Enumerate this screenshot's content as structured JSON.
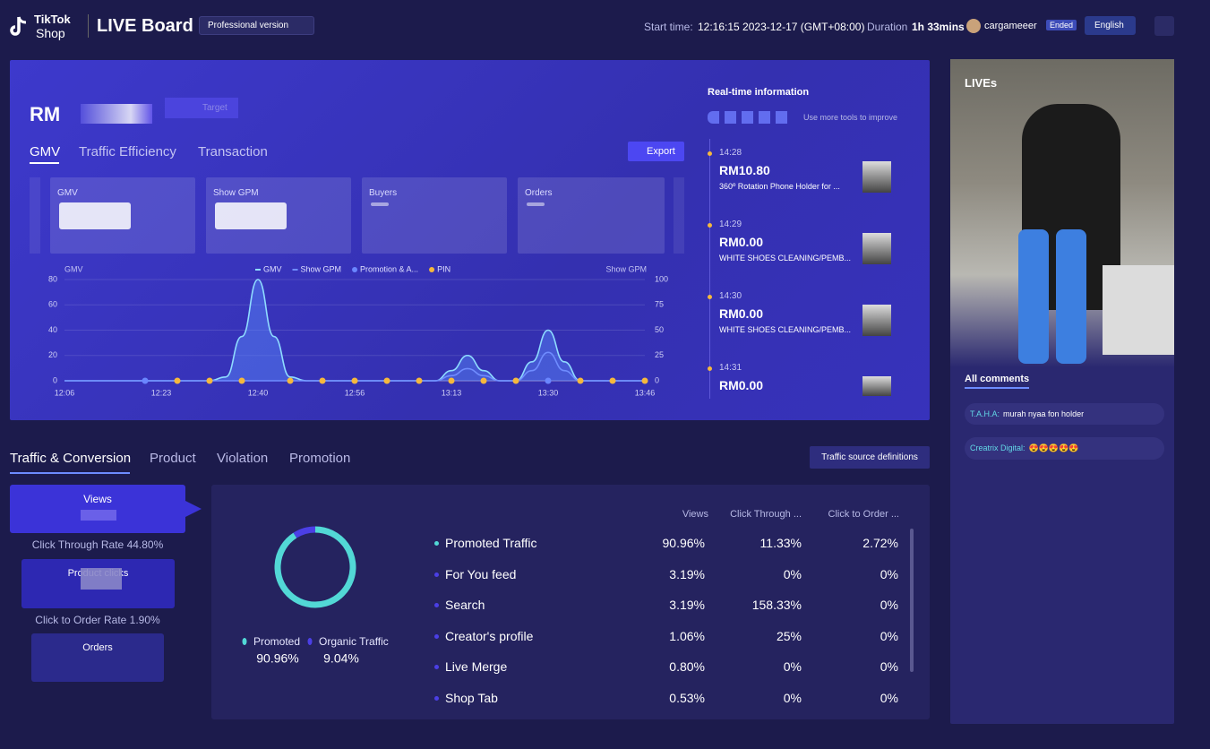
{
  "header": {
    "brand": "TikTok",
    "brand_sub": "Shop",
    "title": "LIVE Board",
    "version": "Professional version",
    "start_label": "Start time:",
    "start_time": "12:16:15 2023-12-17 (GMT+08:00)",
    "duration_label": "Duration",
    "duration": "1h 33mins",
    "user": "cargameeer",
    "status": "Ended",
    "language": "English"
  },
  "summary": {
    "currency": "RM",
    "target": "Target",
    "tabs": [
      "GMV",
      "Traffic Efficiency",
      "Transaction"
    ],
    "export": "Export",
    "cards": [
      "GMV",
      "Show GPM",
      "Buyers",
      "Orders"
    ]
  },
  "realtime": {
    "title": "Real-time information",
    "hint": "Use more tools to improve",
    "items": [
      {
        "time": "14:28",
        "amount": "RM10.80",
        "product": "360º Rotation Phone Holder for ..."
      },
      {
        "time": "14:29",
        "amount": "RM0.00",
        "product": "WHITE SHOES CLEANING/PEMB..."
      },
      {
        "time": "14:30",
        "amount": "RM0.00",
        "product": "WHITE SHOES CLEANING/PEMB..."
      },
      {
        "time": "14:31",
        "amount": "RM0.00"
      }
    ]
  },
  "chart_data": [
    {
      "type": "line",
      "y_label": "GMV",
      "y2_label": "Show GPM",
      "categories": [
        "12:06",
        null,
        null,
        null,
        null,
        null,
        "12:23",
        null,
        null,
        null,
        null,
        null,
        "12:40",
        null,
        null,
        null,
        null,
        null,
        "12:56",
        null,
        null,
        null,
        null,
        null,
        "13:13",
        null,
        null,
        null,
        null,
        null,
        "13:30",
        null,
        null,
        null,
        null,
        null,
        "13:46"
      ],
      "ylim": [
        0,
        80
      ],
      "yticks": [
        0,
        20,
        40,
        60,
        80
      ],
      "y2lim": [
        0,
        100
      ],
      "y2ticks": [
        0,
        25,
        50,
        75,
        100
      ],
      "grid": true,
      "series": [
        {
          "name": "GMV",
          "color": "#8fdcff",
          "values": [
            0,
            0,
            0,
            0,
            0,
            0,
            0,
            0,
            0,
            0,
            3,
            35,
            80,
            35,
            3,
            0,
            0,
            0,
            0,
            0,
            0,
            0,
            0,
            0,
            8,
            20,
            8,
            0,
            0,
            15,
            40,
            15,
            0,
            0,
            0,
            0,
            0
          ]
        },
        {
          "name": "Show GPM",
          "color": "#6f8cff",
          "axis": "y2",
          "values": [
            0,
            0,
            0,
            0,
            0,
            0,
            0,
            0,
            0,
            0,
            0,
            0,
            0,
            0,
            0,
            0,
            0,
            0,
            0,
            0,
            0,
            0,
            0,
            0,
            5,
            12,
            5,
            0,
            0,
            10,
            28,
            10,
            0,
            0,
            0,
            0,
            0
          ]
        },
        {
          "name": "Promotion & A...",
          "color": "#6a86ff",
          "style": "marker",
          "values": [
            null,
            null,
            null,
            null,
            null,
            0,
            null,
            null,
            null,
            null,
            null,
            null,
            null,
            null,
            null,
            null,
            null,
            null,
            null,
            null,
            null,
            null,
            null,
            null,
            null,
            null,
            null,
            null,
            null,
            null,
            0,
            null,
            null,
            null,
            null,
            null,
            null
          ]
        },
        {
          "name": "PIN",
          "color": "#f5b83d",
          "style": "marker",
          "values": [
            null,
            null,
            null,
            null,
            null,
            null,
            null,
            0,
            null,
            0,
            null,
            0,
            null,
            null,
            0,
            null,
            0,
            null,
            0,
            null,
            0,
            null,
            0,
            null,
            0,
            null,
            0,
            null,
            0,
            null,
            null,
            null,
            0,
            null,
            0,
            null,
            0
          ]
        }
      ]
    },
    {
      "type": "pie",
      "categories": [
        "Promoted",
        "Organic Traffic"
      ],
      "values": [
        90.96,
        9.04
      ],
      "value_labels": [
        "90.96%",
        "9.04%"
      ],
      "colors": [
        "#52d8d6",
        "#4b3fe6"
      ]
    }
  ],
  "traffic": {
    "tabs": [
      "Traffic & Conversion",
      "Product",
      "Violation",
      "Promotion"
    ],
    "definitions": "Traffic source definitions",
    "funnel": {
      "views": "Views",
      "ctr_label": "Click Through Rate",
      "ctr": "44.80%",
      "clicks": "Product clicks",
      "cor_label": "Click to Order Rate",
      "cor": "1.90%",
      "orders": "Orders"
    },
    "table": {
      "columns": [
        "Views",
        "Click Through ...",
        "Click to Order ..."
      ],
      "rows": [
        [
          "Promoted Traffic",
          "90.96%",
          "11.33%",
          "2.72%"
        ],
        [
          "For You feed",
          "3.19%",
          "0%",
          "0%"
        ],
        [
          "Search",
          "3.19%",
          "158.33%",
          "0%"
        ],
        [
          "Creator's profile",
          "1.06%",
          "25%",
          "0%"
        ],
        [
          "Live Merge",
          "0.80%",
          "0%",
          "0%"
        ],
        [
          "Shop Tab",
          "0.53%",
          "0%",
          "0%"
        ]
      ]
    }
  },
  "live": {
    "title": "LIVEs",
    "comments_title": "All comments",
    "comments": [
      {
        "user": "T.A.H.A:",
        "text": "murah nyaa fon holder"
      },
      {
        "user": "Creatrix Digital:",
        "text": "😍😍😍😍😍"
      }
    ]
  }
}
